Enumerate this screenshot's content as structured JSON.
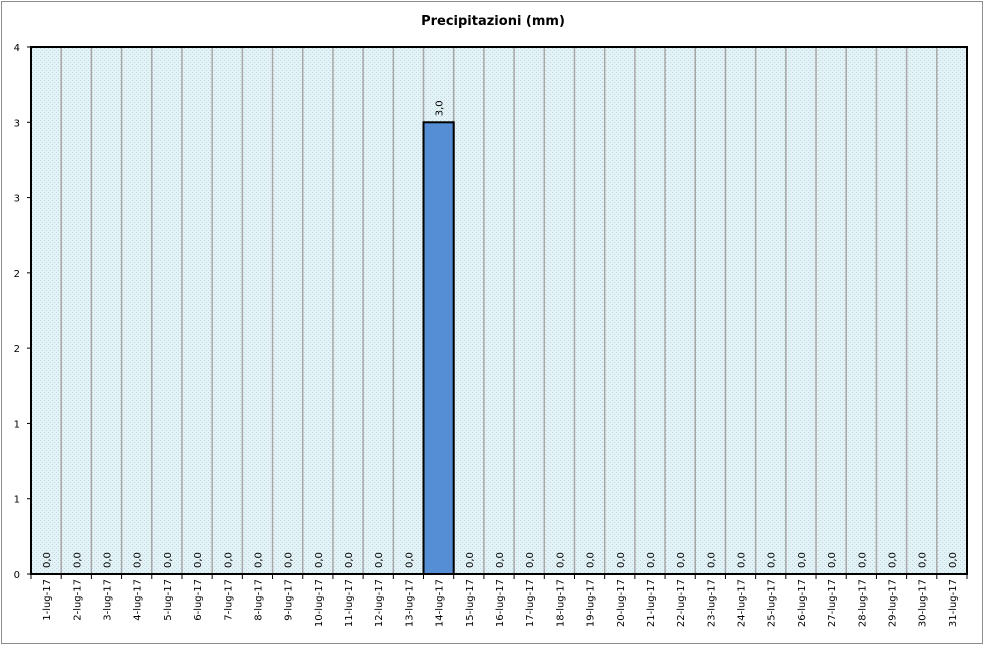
{
  "chart_data": {
    "type": "bar",
    "title": "Precipitazioni (mm)",
    "xlabel": "",
    "ylabel": "",
    "ylim": [
      0,
      3.5
    ],
    "y_tick_labels": [
      "0",
      "1",
      "1",
      "2",
      "2",
      "3",
      "3",
      "4"
    ],
    "grid": true,
    "legend": "none",
    "categories": [
      "1-lug-17",
      "2-lug-17",
      "3-lug-17",
      "4-lug-17",
      "5-lug-17",
      "6-lug-17",
      "7-lug-17",
      "8-lug-17",
      "9-lug-17",
      "10-lug-17",
      "11-lug-17",
      "12-lug-17",
      "13-lug-17",
      "14-lug-17",
      "15-lug-17",
      "16-lug-17",
      "17-lug-17",
      "18-lug-17",
      "19-lug-17",
      "20-lug-17",
      "21-lug-17",
      "22-lug-17",
      "23-lug-17",
      "24-lug-17",
      "25-lug-17",
      "26-lug-17",
      "27-lug-17",
      "28-lug-17",
      "29-lug-17",
      "30-lug-17",
      "31-lug-17"
    ],
    "values": [
      0,
      0,
      0,
      0,
      0,
      0,
      0,
      0,
      0,
      0,
      0,
      0,
      0,
      3,
      0,
      0,
      0,
      0,
      0,
      0,
      0,
      0,
      0,
      0,
      0,
      0,
      0,
      0,
      0,
      0,
      0
    ],
    "data_labels": [
      "0,0",
      "0,0",
      "0,0",
      "0,0",
      "0,0",
      "0,0",
      "0,0",
      "0,0",
      "0,0",
      "0,0",
      "0,0",
      "0,0",
      "0,0",
      "3,0",
      "0,0",
      "0,0",
      "0,0",
      "0,0",
      "0,0",
      "0,0",
      "0,0",
      "0,0",
      "0,0",
      "0,0",
      "0,0",
      "0,0",
      "0,0",
      "0,0",
      "0,0",
      "0,0",
      "0,0"
    ],
    "colors": {
      "bar_fill": "#558ed5",
      "bar_stroke": "#000000",
      "plot_bg": "#e4f2f6",
      "plot_pattern": "#b7dce6",
      "gridline": "#a6a6a6"
    }
  }
}
